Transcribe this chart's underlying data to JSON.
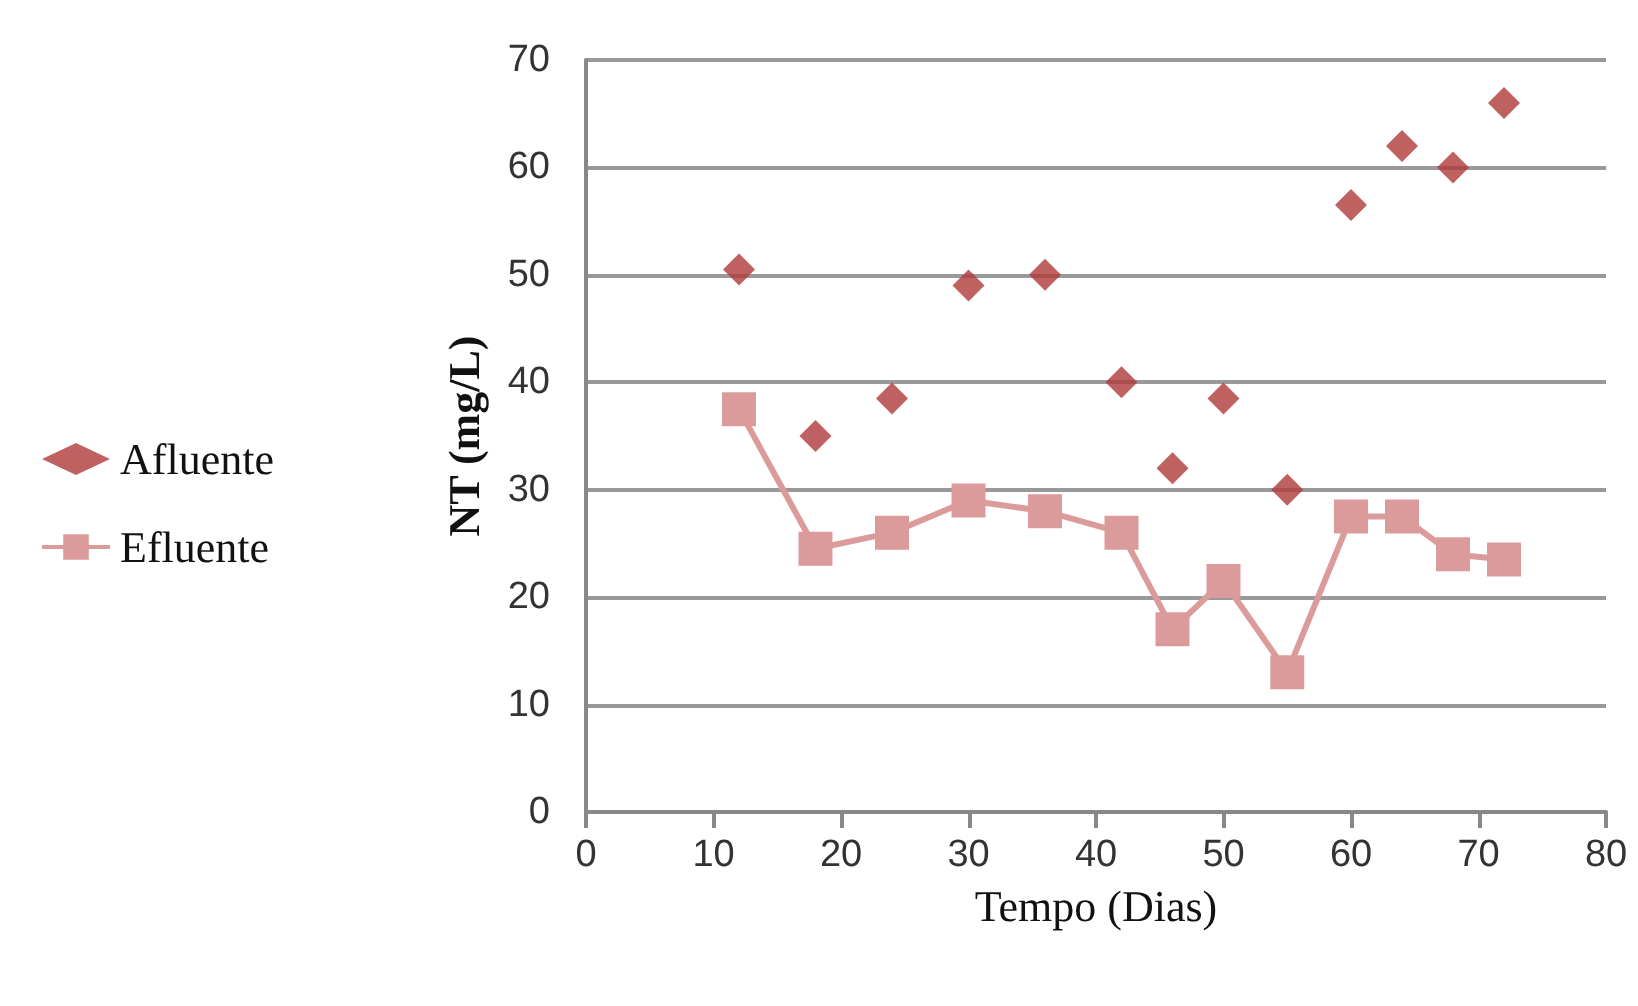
{
  "chart_data": {
    "type": "scatter",
    "xlabel": "Tempo (Dias)",
    "ylabel": "NT (mg/L)",
    "x": [
      12,
      18,
      24,
      30,
      36,
      42,
      46,
      50,
      55,
      60,
      64,
      68,
      72
    ],
    "series": [
      {
        "name": "Afluente",
        "color": "#b03a3a",
        "marker": "diamond",
        "values": [
          50.5,
          35,
          38.5,
          49,
          50,
          40,
          32,
          38.5,
          30,
          56.5,
          62,
          60,
          66
        ]
      },
      {
        "name": "Efluente",
        "type": "line",
        "color": "#dc9b9b",
        "marker": "square",
        "values": [
          37.5,
          24.5,
          26,
          29,
          28,
          26,
          17,
          21.5,
          13,
          27.5,
          27.5,
          24,
          23.5
        ]
      }
    ],
    "xlim": [
      0,
      80
    ],
    "xticks": [
      0,
      10,
      20,
      30,
      40,
      50,
      60,
      70,
      80
    ],
    "ylim": [
      0,
      70
    ],
    "yticks": [
      0,
      10,
      20,
      30,
      40,
      50,
      60,
      70
    ],
    "grid": "y",
    "legend": "left"
  }
}
